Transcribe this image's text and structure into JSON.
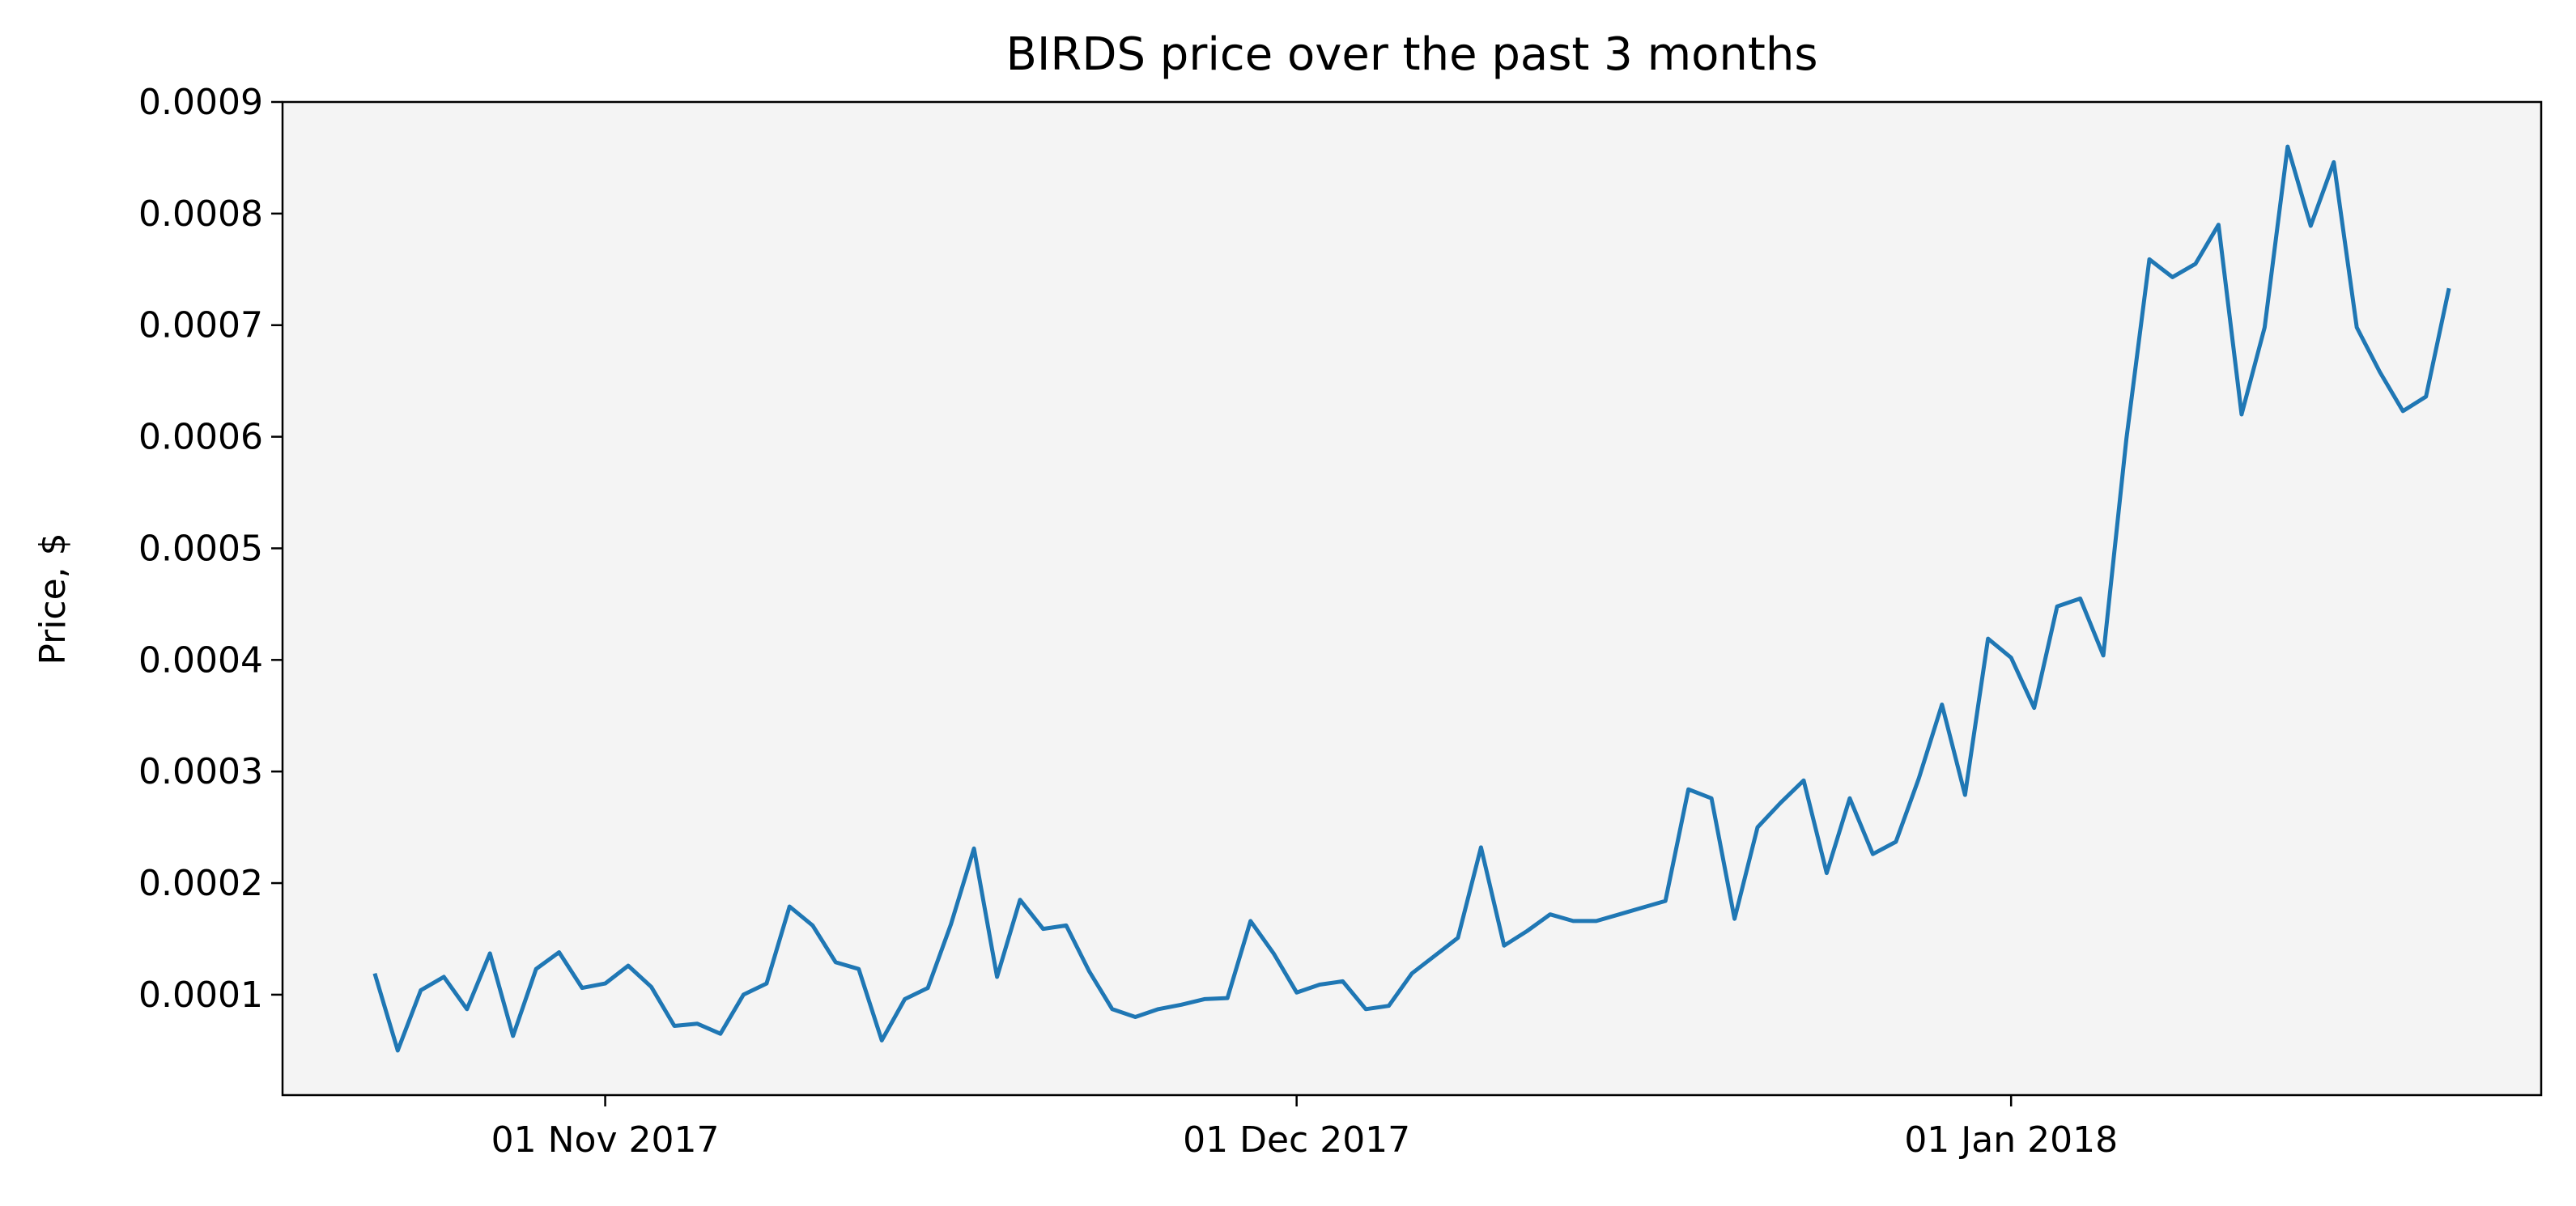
{
  "chart_data": {
    "type": "line",
    "title": "BIRDS price over the past 3 months",
    "ylabel": "Price, $",
    "x": [
      "2017-10-22",
      "2017-10-23",
      "2017-10-24",
      "2017-10-25",
      "2017-10-26",
      "2017-10-27",
      "2017-10-28",
      "2017-10-29",
      "2017-10-30",
      "2017-10-31",
      "2017-11-01",
      "2017-11-02",
      "2017-11-03",
      "2017-11-04",
      "2017-11-05",
      "2017-11-06",
      "2017-11-07",
      "2017-11-08",
      "2017-11-09",
      "2017-11-10",
      "2017-11-11",
      "2017-11-12",
      "2017-11-13",
      "2017-11-14",
      "2017-11-15",
      "2017-11-16",
      "2017-11-17",
      "2017-11-18",
      "2017-11-19",
      "2017-11-20",
      "2017-11-21",
      "2017-11-22",
      "2017-11-23",
      "2017-11-24",
      "2017-11-25",
      "2017-11-26",
      "2017-11-27",
      "2017-11-28",
      "2017-11-29",
      "2017-11-30",
      "2017-12-01",
      "2017-12-02",
      "2017-12-03",
      "2017-12-04",
      "2017-12-05",
      "2017-12-06",
      "2017-12-07",
      "2017-12-08",
      "2017-12-09",
      "2017-12-10",
      "2017-12-11",
      "2017-12-12",
      "2017-12-13",
      "2017-12-14",
      "2017-12-15",
      "2017-12-16",
      "2017-12-17",
      "2017-12-18",
      "2017-12-19",
      "2017-12-20",
      "2017-12-21",
      "2017-12-22",
      "2017-12-23",
      "2017-12-24",
      "2017-12-25",
      "2017-12-26",
      "2017-12-27",
      "2017-12-28",
      "2017-12-29",
      "2017-12-30",
      "2017-12-31",
      "2018-01-01",
      "2018-01-02",
      "2018-01-03",
      "2018-01-04",
      "2018-01-05",
      "2018-01-06",
      "2018-01-07",
      "2018-01-08",
      "2018-01-09",
      "2018-01-10",
      "2018-01-11",
      "2018-01-12",
      "2018-01-13",
      "2018-01-14",
      "2018-01-15",
      "2018-01-16",
      "2018-01-17",
      "2018-01-18",
      "2018-01-19",
      "2018-01-20"
    ],
    "series": [
      {
        "name": "BIRDS",
        "color": "#1f77b4",
        "values": [
          0.000119,
          5e-05,
          0.000104,
          0.000116,
          8.7e-05,
          0.000137,
          6.3e-05,
          0.000123,
          0.000138,
          0.000106,
          0.00011,
          0.000126,
          0.000107,
          7.2e-05,
          7.4e-05,
          6.5e-05,
          0.0001,
          0.00011,
          0.000179,
          0.000162,
          0.000129,
          0.000123,
          5.9e-05,
          9.6e-05,
          0.000106,
          0.000163,
          0.000231,
          0.000116,
          0.000185,
          0.000159,
          0.000162,
          0.000121,
          8.7e-05,
          8e-05,
          8.7e-05,
          9.1e-05,
          9.6e-05,
          9.7e-05,
          0.000166,
          0.000137,
          0.000102,
          0.000109,
          0.000112,
          8.7e-05,
          9e-05,
          0.000119,
          0.000135,
          0.000151,
          0.000232,
          0.000144,
          0.000157,
          0.000172,
          0.000166,
          0.000166,
          0.000172,
          0.000178,
          0.000184,
          0.000284,
          0.000276,
          0.000168,
          0.00025,
          0.000272,
          0.000292,
          0.000209,
          0.000276,
          0.000226,
          0.000237,
          0.000294,
          0.00036,
          0.000279,
          0.000419,
          0.000402,
          0.000357,
          0.000448,
          0.000455,
          0.000404,
          0.000598,
          0.000759,
          0.000743,
          0.000755,
          0.00079,
          0.00062,
          0.000698,
          0.00086,
          0.000789,
          0.000846,
          0.000698,
          0.000658,
          0.000623,
          0.000636,
          0.000733
        ]
      }
    ],
    "xlim": [
      "2017-10-18",
      "2018-01-24"
    ],
    "xticks": [
      {
        "value": "2017-11-01",
        "label": "01 Nov 2017"
      },
      {
        "value": "2017-12-01",
        "label": "01 Dec 2017"
      },
      {
        "value": "2018-01-01",
        "label": "01 Jan 2018"
      }
    ],
    "ylim": [
      1e-05,
      0.0009
    ],
    "yticks": [
      0.0001,
      0.0002,
      0.0003,
      0.0004,
      0.0005,
      0.0006,
      0.0007,
      0.0008,
      0.0009
    ],
    "background": "#f4f4f4"
  }
}
